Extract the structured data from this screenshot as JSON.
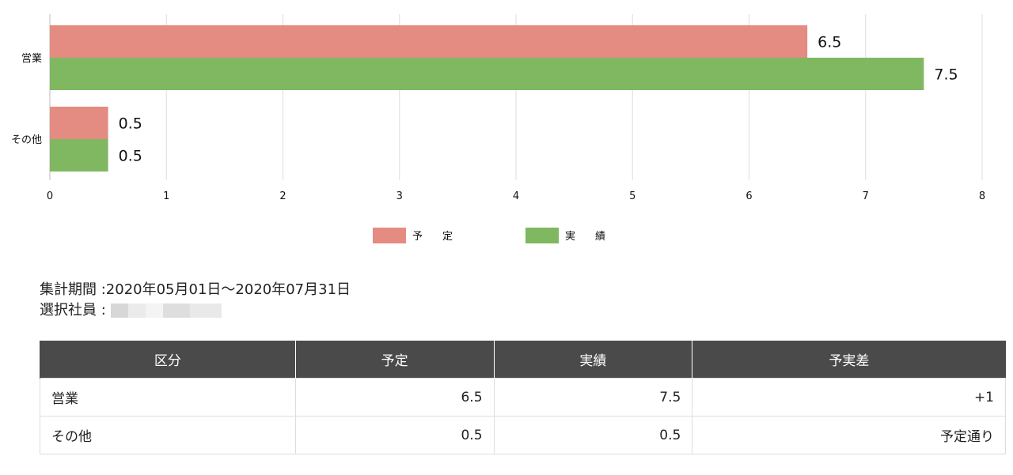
{
  "chart_data": {
    "type": "bar",
    "orientation": "horizontal",
    "categories": [
      "営業",
      "その他"
    ],
    "series": [
      {
        "name": "予　定",
        "values": [
          6.5,
          0.5
        ],
        "color": "#e48b82"
      },
      {
        "name": "実　績",
        "values": [
          7.5,
          0.5
        ],
        "color": "#7fb860"
      }
    ],
    "xlim": [
      0,
      8
    ],
    "xticks": [
      0,
      1,
      2,
      3,
      4,
      5,
      6,
      7,
      8
    ],
    "data_labels": true,
    "grid": true,
    "legend_position": "bottom"
  },
  "info": {
    "period_label": "集計期間 : ",
    "period_value": "2020年05月01日〜2020年07月31日",
    "employee_label": "選択社員 : "
  },
  "table": {
    "headers": [
      "区分",
      "予定",
      "実績",
      "予実差"
    ],
    "rows": [
      {
        "category": "営業",
        "planned": "6.5",
        "actual": "7.5",
        "diff": "+1",
        "diff_color": "#d9342b"
      },
      {
        "category": "その他",
        "planned": "0.5",
        "actual": "0.5",
        "diff": "予定通り",
        "diff_color": "#3c8b2e"
      }
    ]
  }
}
